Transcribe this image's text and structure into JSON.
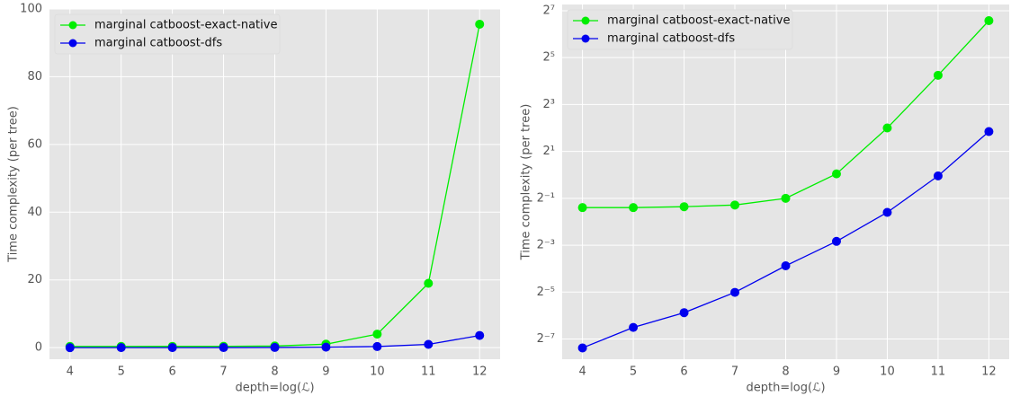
{
  "chart_data": [
    {
      "type": "line",
      "xlabel": "depth=log(ℒ)",
      "ylabel": "Time complexity (per tree)",
      "x": [
        4,
        5,
        6,
        7,
        8,
        9,
        10,
        11,
        12
      ],
      "series": [
        {
          "name": "marginal catboost-exact-native",
          "color": "#00ee00",
          "values": [
            0.38,
            0.38,
            0.39,
            0.41,
            0.5,
            1.03,
            4.0,
            19.0,
            95.5
          ]
        },
        {
          "name": "marginal catboost-dfs",
          "color": "#0000ee",
          "values": [
            0.006,
            0.011,
            0.017,
            0.031,
            0.068,
            0.14,
            0.33,
            0.97,
            3.6
          ]
        }
      ],
      "xlim": [
        3.6,
        12.4
      ],
      "xticks": [
        4,
        5,
        6,
        7,
        8,
        9,
        10,
        11,
        12
      ],
      "ylim": [
        -3.4,
        100
      ],
      "yticks": [
        0,
        20,
        40,
        60,
        80,
        100
      ],
      "yscale": "linear",
      "grid": true,
      "legend_loc": "upper left"
    },
    {
      "type": "line",
      "xlabel": "depth=log(ℒ)",
      "ylabel": "Time complexity (per tree)",
      "x": [
        4,
        5,
        6,
        7,
        8,
        9,
        10,
        11,
        12
      ],
      "series": [
        {
          "name": "marginal catboost-exact-native",
          "color": "#00ee00",
          "values": [
            0.38,
            0.38,
            0.39,
            0.41,
            0.5,
            1.03,
            4.0,
            19.0,
            95.5
          ]
        },
        {
          "name": "marginal catboost-dfs",
          "color": "#0000ee",
          "values": [
            0.006,
            0.011,
            0.017,
            0.031,
            0.068,
            0.14,
            0.33,
            0.97,
            3.6
          ]
        }
      ],
      "xlim": [
        3.6,
        12.4
      ],
      "xticks": [
        4,
        5,
        6,
        7,
        8,
        9,
        10,
        11,
        12
      ],
      "ylim": [
        0.0043,
        154
      ],
      "yticks": [
        {
          "value": 0.0078125,
          "label": "2⁻⁷"
        },
        {
          "value": 0.03125,
          "label": "2⁻⁵"
        },
        {
          "value": 0.125,
          "label": "2⁻³"
        },
        {
          "value": 0.5,
          "label": "2⁻¹"
        },
        {
          "value": 2,
          "label": "2¹"
        },
        {
          "value": 8,
          "label": "2³"
        },
        {
          "value": 32,
          "label": "2⁵"
        },
        {
          "value": 128,
          "label": "2⁷"
        }
      ],
      "yscale": "log",
      "grid": true,
      "legend_loc": "upper left"
    }
  ]
}
